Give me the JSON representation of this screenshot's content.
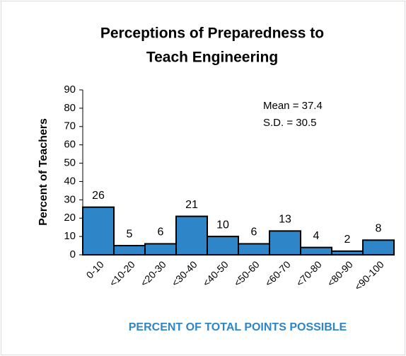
{
  "chart_data": {
    "type": "bar",
    "title": [
      "Perceptions of Preparedness to",
      "Teach Engineering"
    ],
    "y_label": "Percent of Teachers",
    "x_label": "PERCENT OF TOTAL POINTS POSSIBLE",
    "annotations": [
      "Mean = 37.4",
      "S.D. = 30.5"
    ],
    "categories": [
      "0-10",
      "<10-20",
      "<20-30",
      "<30-40",
      "<40-50",
      "<50-60",
      "<60-70",
      "<70-80",
      "<80-90",
      "<90-100"
    ],
    "values": [
      26,
      5,
      6,
      21,
      10,
      6,
      13,
      4,
      2,
      8
    ],
    "color": "#2e86c9",
    "ylim": [
      0,
      90
    ],
    "yticks": [
      0,
      10,
      20,
      30,
      40,
      50,
      60,
      70,
      80,
      90
    ],
    "grid": false
  }
}
